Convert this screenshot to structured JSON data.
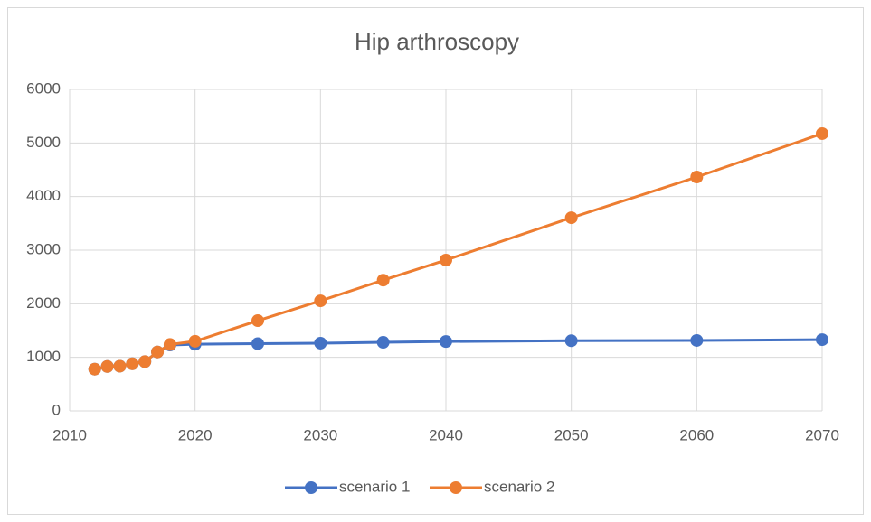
{
  "chart_data": {
    "type": "line",
    "title": "Hip arthroscopy",
    "x": [
      2012,
      2013,
      2014,
      2015,
      2016,
      2017,
      2018,
      2020,
      2025,
      2030,
      2035,
      2040,
      2050,
      2060,
      2070
    ],
    "series": [
      {
        "name": "scenario 1",
        "color": "#4472c4",
        "values": [
          780,
          830,
          835,
          880,
          920,
          1100,
          1230,
          1245,
          1255,
          1265,
          1280,
          1295,
          1310,
          1315,
          1330
        ]
      },
      {
        "name": "scenario 2",
        "color": "#ed7d31",
        "values": [
          780,
          830,
          835,
          880,
          920,
          1100,
          1240,
          1300,
          1685,
          2055,
          2440,
          2815,
          3605,
          4365,
          5175
        ]
      }
    ],
    "xlim": [
      2010,
      2070
    ],
    "xticks": [
      2010,
      2020,
      2030,
      2040,
      2050,
      2060,
      2070
    ],
    "ylim": [
      0,
      6000
    ],
    "yticks": [
      0,
      1000,
      2000,
      3000,
      4000,
      5000,
      6000
    ],
    "grid": true,
    "legend": "bottom"
  }
}
